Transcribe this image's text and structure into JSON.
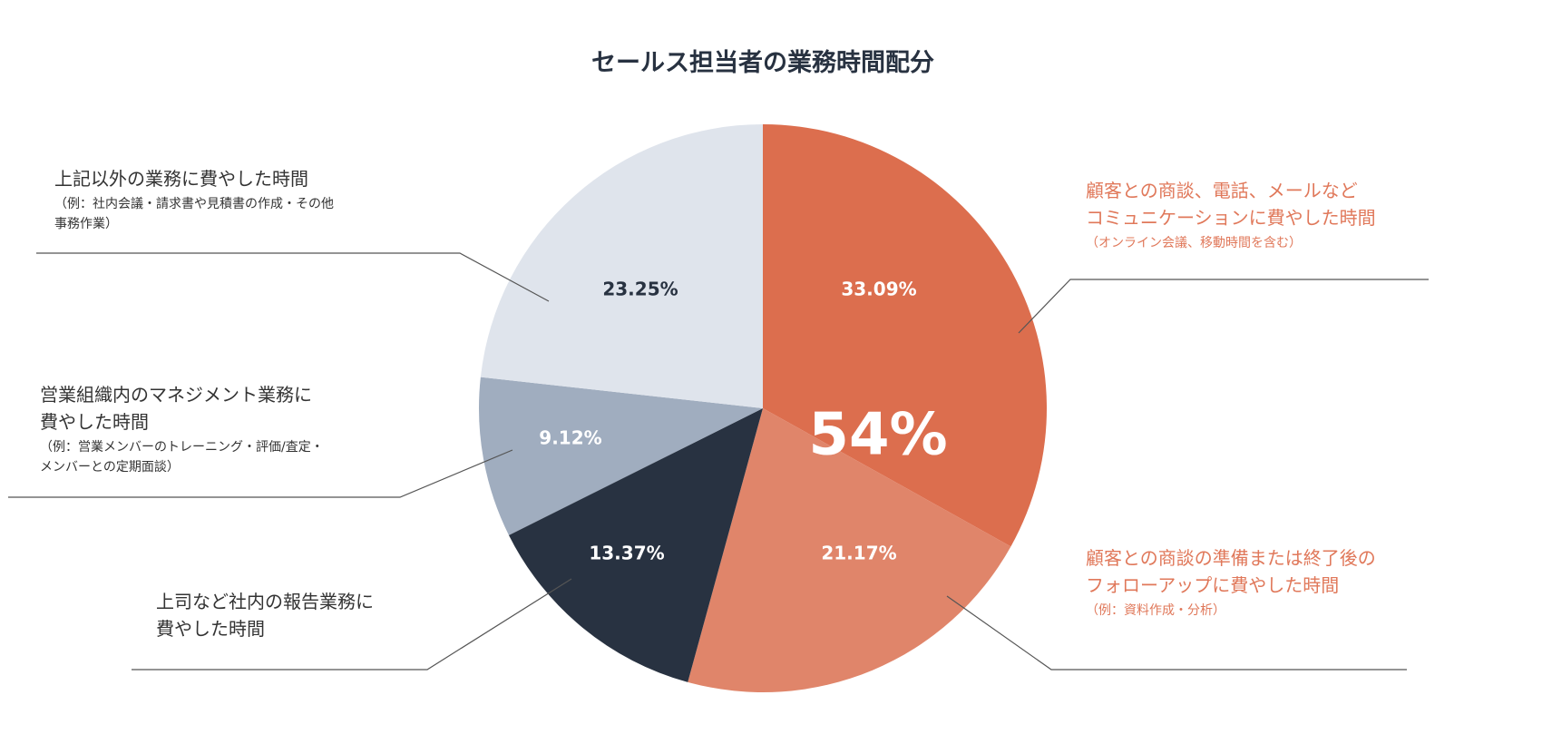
{
  "chart_data": {
    "type": "pie",
    "title": "セールス担当者の業務時間配分",
    "categories": [
      "顧客との商談、電話、メールなど\nコミュニケーションに費やした時間",
      "顧客との商談の準備または終了後の\nフォローアップに費やした時間",
      "上司など社内の報告業務に\n費やした時間",
      "営業組織内のマネジメント業務に\n費やした時間",
      "上記以外の業務に費やした時間"
    ],
    "notes": [
      "（オンライン会議、移動時間を含む）",
      "（例：資料作成・分析）",
      null,
      "（例：営業メンバーのトレーニング・評価/査定・\nメンバーとの定期面談）",
      "（例：社内会議・請求書や見積書の作成・その他\n事務作業）"
    ],
    "values": [
      33.09,
      21.17,
      13.37,
      9.12,
      23.25
    ],
    "value_labels": [
      "33.09%",
      "21.17%",
      "13.37%",
      "9.12%",
      "23.25%"
    ],
    "colors": [
      "#dc6e4e",
      "#e0856a",
      "#283241",
      "#a0adbf",
      "#dfe4ec"
    ],
    "annotation": "54%"
  }
}
